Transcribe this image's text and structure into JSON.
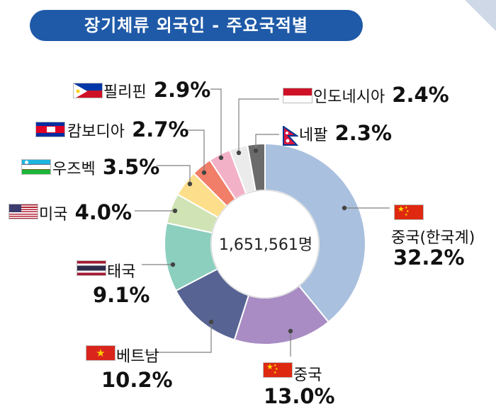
{
  "page": {
    "title": "장기체류 외국인 - 주요국적별"
  },
  "chart_data": {
    "type": "donut",
    "center_label": "1,651,561명",
    "slices": [
      {
        "label": "중국(한국계)",
        "value": 32.2,
        "pct_text": "32.2%",
        "color": "#a9c0de",
        "flag": "china"
      },
      {
        "label": "중국",
        "value": 13.0,
        "pct_text": "13.0%",
        "color": "#a88cc3",
        "flag": "china"
      },
      {
        "label": "베트남",
        "value": 10.2,
        "pct_text": "10.2%",
        "color": "#566393",
        "flag": "vietnam"
      },
      {
        "label": "태국",
        "value": 9.1,
        "pct_text": "9.1%",
        "color": "#8ccfbe",
        "flag": "thailand"
      },
      {
        "label": "미국",
        "value": 4.0,
        "pct_text": "4.0%",
        "color": "#cfe3b4",
        "flag": "usa"
      },
      {
        "label": "우즈벡",
        "value": 3.5,
        "pct_text": "3.5%",
        "color": "#fddf8b",
        "flag": "uzbekistan"
      },
      {
        "label": "캄보디아",
        "value": 2.7,
        "pct_text": "2.7%",
        "color": "#f07e68",
        "flag": "cambodia"
      },
      {
        "label": "필리핀",
        "value": 2.9,
        "pct_text": "2.9%",
        "color": "#f3b1c8",
        "flag": "philippines"
      },
      {
        "label": "인도네시아",
        "value": 2.4,
        "pct_text": "2.4%",
        "color": "#ebebeb",
        "flag": "indonesia"
      },
      {
        "label": "네팔",
        "value": 2.3,
        "pct_text": "2.3%",
        "color": "#6b6b6b",
        "flag": "nepal"
      }
    ]
  }
}
